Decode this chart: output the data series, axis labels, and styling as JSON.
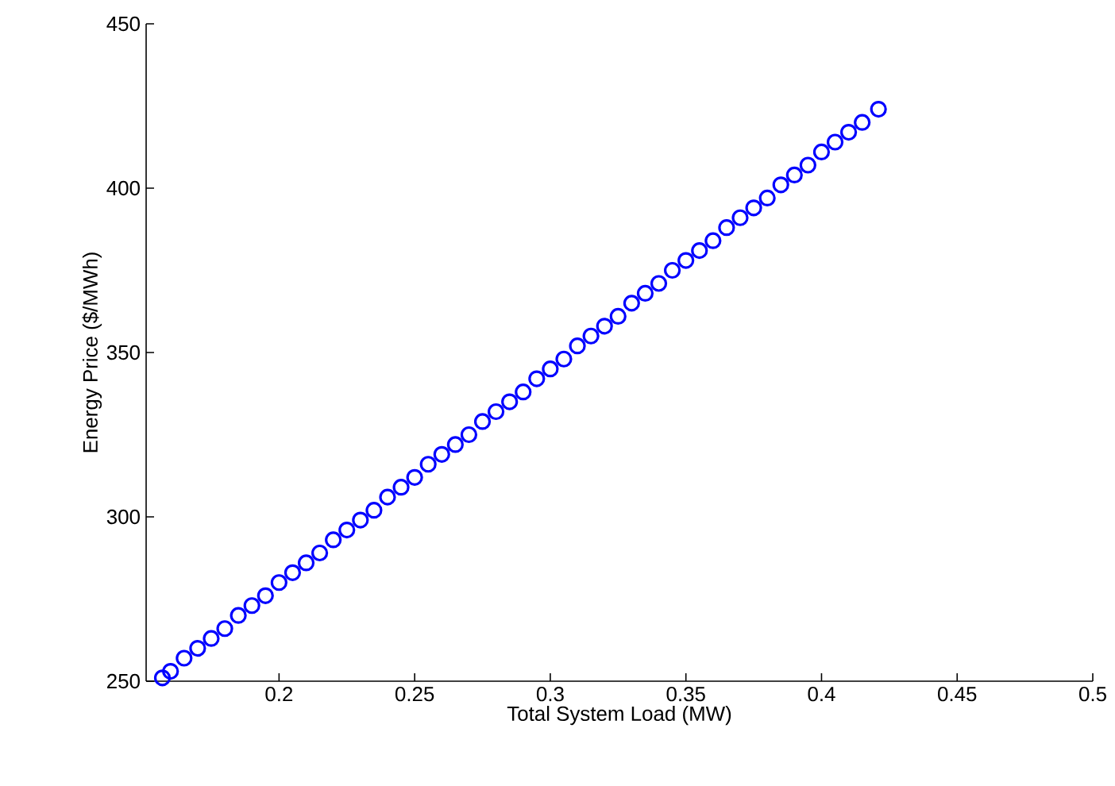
{
  "chart_data": {
    "type": "scatter",
    "xlabel": "Total System Load (MW)",
    "ylabel": "Energy Price ($/MWh)",
    "x": [
      0.157,
      0.16,
      0.165,
      0.17,
      0.175,
      0.18,
      0.185,
      0.19,
      0.195,
      0.2,
      0.205,
      0.21,
      0.215,
      0.22,
      0.225,
      0.23,
      0.235,
      0.24,
      0.245,
      0.25,
      0.255,
      0.26,
      0.265,
      0.27,
      0.275,
      0.28,
      0.285,
      0.29,
      0.295,
      0.3,
      0.305,
      0.31,
      0.315,
      0.32,
      0.325,
      0.33,
      0.335,
      0.34,
      0.345,
      0.35,
      0.355,
      0.36,
      0.365,
      0.37,
      0.375,
      0.38,
      0.385,
      0.39,
      0.395,
      0.4,
      0.405,
      0.41,
      0.415,
      0.421
    ],
    "values": [
      251,
      253,
      257,
      260,
      263,
      266,
      270,
      273,
      276,
      280,
      283,
      286,
      289,
      293,
      296,
      299,
      302,
      306,
      309,
      312,
      316,
      319,
      322,
      325,
      329,
      332,
      335,
      338,
      342,
      345,
      348,
      352,
      355,
      358,
      361,
      365,
      368,
      371,
      375,
      378,
      381,
      384,
      388,
      391,
      394,
      397,
      401,
      404,
      407,
      411,
      414,
      417,
      420,
      424
    ],
    "color": "#0000ff",
    "marker": "circle",
    "xlim": [
      0.151,
      0.5
    ],
    "xticks": [
      0.2,
      0.25,
      0.3,
      0.35,
      0.4,
      0.45,
      0.5
    ],
    "ylim": [
      250,
      450
    ],
    "yticks": [
      250,
      300,
      350,
      400,
      450
    ]
  }
}
